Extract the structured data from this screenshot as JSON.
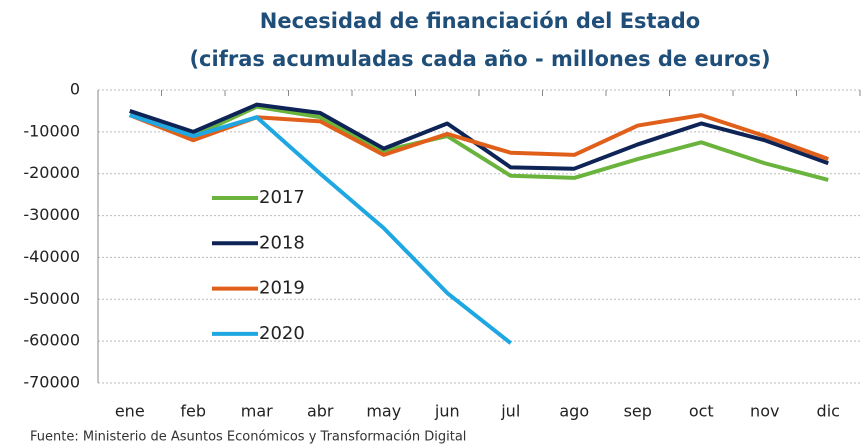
{
  "chart_data": {
    "type": "line",
    "title": "Necesidad de financiación del Estado",
    "subtitle": "(cifras acumuladas cada año - millones de euros)",
    "categories": [
      "ene",
      "feb",
      "mar",
      "abr",
      "may",
      "jun",
      "jul",
      "ago",
      "sep",
      "oct",
      "nov",
      "dic"
    ],
    "series": [
      {
        "name": "2017",
        "color": "#6ab43e",
        "values": [
          -6000,
          -11000,
          -4000,
          -6500,
          -14500,
          -11000,
          -20500,
          -21000,
          -16500,
          -12500,
          -17500,
          -21500
        ]
      },
      {
        "name": "2018",
        "color": "#0e2356",
        "values": [
          -5000,
          -10000,
          -3500,
          -5500,
          -14000,
          -8000,
          -18500,
          -18800,
          -13000,
          -8000,
          -12000,
          -17500
        ]
      },
      {
        "name": "2019",
        "color": "#e0601b",
        "values": [
          -6000,
          -12000,
          -6500,
          -7500,
          -15500,
          -10500,
          -15000,
          -15500,
          -8500,
          -6000,
          -11000,
          -16500
        ]
      },
      {
        "name": "2020",
        "color": "#1ea7e1",
        "values": [
          -6000,
          -11000,
          -6500,
          -20000,
          -33000,
          -48500,
          -60500,
          null,
          null,
          null,
          null,
          null
        ]
      }
    ],
    "ylim": [
      -70000,
      0
    ],
    "yticks": [
      0,
      -10000,
      -20000,
      -30000,
      -40000,
      -50000,
      -60000,
      -70000
    ],
    "grid": true,
    "legend": "left",
    "source": "Fuente: Ministerio de Asuntos Económicos y Transformación Digital"
  }
}
